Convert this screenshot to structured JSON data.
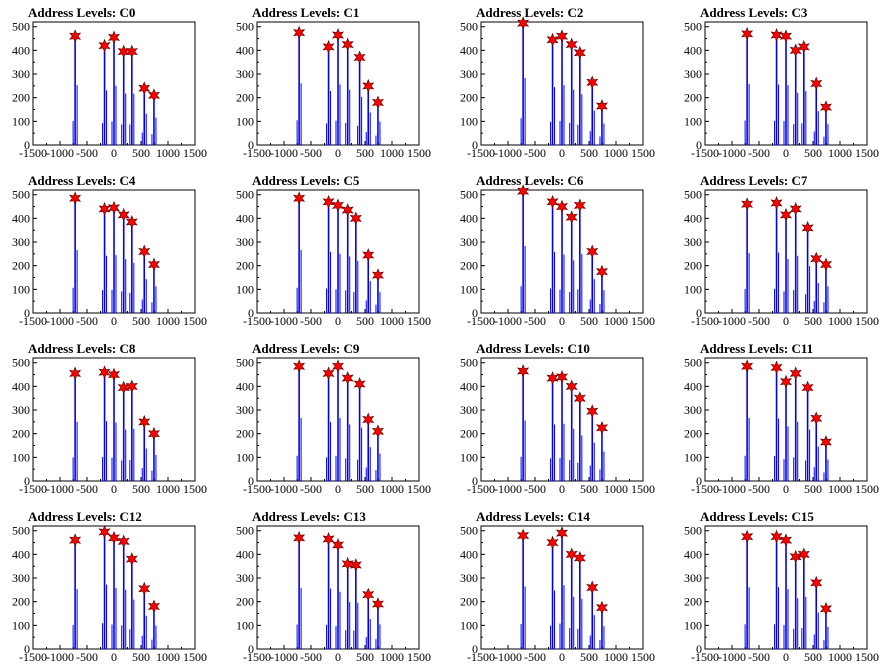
{
  "chart_data": [
    {
      "type": "bar",
      "title": "Address Levels: C0",
      "xlim": [
        -1500,
        1500
      ],
      "ylim": [
        0,
        520
      ],
      "x_ticks": [
        -1500,
        -1000,
        -500,
        0,
        500,
        1000,
        1500
      ],
      "y_ticks": [
        0,
        100,
        200,
        300,
        400,
        500
      ],
      "peaks": [
        {
          "x": -720,
          "y": 460
        },
        {
          "x": -175,
          "y": 420
        },
        {
          "x": 0,
          "y": 455
        },
        {
          "x": 180,
          "y": 395
        },
        {
          "x": 330,
          "y": 395
        },
        {
          "x": 560,
          "y": 240
        },
        {
          "x": 740,
          "y": 210
        }
      ]
    },
    {
      "type": "bar",
      "title": "Address Levels: C1",
      "xlim": [
        -1500,
        1500
      ],
      "ylim": [
        0,
        520
      ],
      "x_ticks": [
        -1500,
        -1000,
        -500,
        0,
        500,
        1000,
        1500
      ],
      "y_ticks": [
        0,
        100,
        200,
        300,
        400,
        500
      ],
      "peaks": [
        {
          "x": -720,
          "y": 475
        },
        {
          "x": -175,
          "y": 415
        },
        {
          "x": 0,
          "y": 465
        },
        {
          "x": 180,
          "y": 425
        },
        {
          "x": 400,
          "y": 370
        },
        {
          "x": 560,
          "y": 250
        },
        {
          "x": 740,
          "y": 180
        }
      ]
    },
    {
      "type": "bar",
      "title": "Address Levels: C2",
      "xlim": [
        -1500,
        1500
      ],
      "ylim": [
        0,
        520
      ],
      "x_ticks": [
        -1500,
        -1000,
        -500,
        0,
        500,
        1000,
        1500
      ],
      "y_ticks": [
        0,
        100,
        200,
        300,
        400,
        500
      ],
      "peaks": [
        {
          "x": -720,
          "y": 515
        },
        {
          "x": -175,
          "y": 445
        },
        {
          "x": 0,
          "y": 460
        },
        {
          "x": 180,
          "y": 425
        },
        {
          "x": 330,
          "y": 390
        },
        {
          "x": 560,
          "y": 265
        },
        {
          "x": 740,
          "y": 165
        }
      ]
    },
    {
      "type": "bar",
      "title": "Address Levels: C3",
      "xlim": [
        -1500,
        1500
      ],
      "ylim": [
        0,
        520
      ],
      "x_ticks": [
        -1500,
        -1000,
        -500,
        0,
        500,
        1000,
        1500
      ],
      "y_ticks": [
        0,
        100,
        200,
        300,
        400,
        500
      ],
      "peaks": [
        {
          "x": -720,
          "y": 470
        },
        {
          "x": -175,
          "y": 465
        },
        {
          "x": 0,
          "y": 460
        },
        {
          "x": 180,
          "y": 400
        },
        {
          "x": 330,
          "y": 415
        },
        {
          "x": 560,
          "y": 260
        },
        {
          "x": 740,
          "y": 160
        }
      ]
    },
    {
      "type": "bar",
      "title": "Address Levels: C4",
      "xlim": [
        -1500,
        1500
      ],
      "ylim": [
        0,
        520
      ],
      "x_ticks": [
        -1500,
        -1000,
        -500,
        0,
        500,
        1000,
        1500
      ],
      "y_ticks": [
        0,
        100,
        200,
        300,
        400,
        500
      ],
      "peaks": [
        {
          "x": -720,
          "y": 485
        },
        {
          "x": -175,
          "y": 440
        },
        {
          "x": 0,
          "y": 445
        },
        {
          "x": 180,
          "y": 415
        },
        {
          "x": 330,
          "y": 385
        },
        {
          "x": 560,
          "y": 260
        },
        {
          "x": 740,
          "y": 205
        }
      ]
    },
    {
      "type": "bar",
      "title": "Address Levels: C5",
      "xlim": [
        -1500,
        1500
      ],
      "ylim": [
        0,
        520
      ],
      "x_ticks": [
        -1500,
        -1000,
        -500,
        0,
        500,
        1000,
        1500
      ],
      "y_ticks": [
        0,
        100,
        200,
        300,
        400,
        500
      ],
      "peaks": [
        {
          "x": -720,
          "y": 485
        },
        {
          "x": -175,
          "y": 470
        },
        {
          "x": 0,
          "y": 455
        },
        {
          "x": 180,
          "y": 435
        },
        {
          "x": 330,
          "y": 400
        },
        {
          "x": 560,
          "y": 245
        },
        {
          "x": 740,
          "y": 160
        }
      ]
    },
    {
      "type": "bar",
      "title": "Address Levels: C6",
      "xlim": [
        -1500,
        1500
      ],
      "ylim": [
        0,
        520
      ],
      "x_ticks": [
        -1500,
        -1000,
        -500,
        0,
        500,
        1000,
        1500
      ],
      "y_ticks": [
        0,
        100,
        200,
        300,
        400,
        500
      ],
      "peaks": [
        {
          "x": -720,
          "y": 515
        },
        {
          "x": -175,
          "y": 470
        },
        {
          "x": 0,
          "y": 450
        },
        {
          "x": 180,
          "y": 405
        },
        {
          "x": 330,
          "y": 455
        },
        {
          "x": 560,
          "y": 260
        },
        {
          "x": 740,
          "y": 175
        }
      ]
    },
    {
      "type": "bar",
      "title": "Address Levels: C7",
      "xlim": [
        -1500,
        1500
      ],
      "ylim": [
        0,
        520
      ],
      "x_ticks": [
        -1500,
        -1000,
        -500,
        0,
        500,
        1000,
        1500
      ],
      "y_ticks": [
        0,
        100,
        200,
        300,
        400,
        500
      ],
      "peaks": [
        {
          "x": -720,
          "y": 460
        },
        {
          "x": -175,
          "y": 465
        },
        {
          "x": 0,
          "y": 415
        },
        {
          "x": 180,
          "y": 440
        },
        {
          "x": 400,
          "y": 360
        },
        {
          "x": 560,
          "y": 230
        },
        {
          "x": 740,
          "y": 205
        }
      ]
    },
    {
      "type": "bar",
      "title": "Address Levels: C8",
      "xlim": [
        -1500,
        1500
      ],
      "ylim": [
        0,
        520
      ],
      "x_ticks": [
        -1500,
        -1000,
        -500,
        0,
        500,
        1000,
        1500
      ],
      "y_ticks": [
        0,
        100,
        200,
        300,
        400,
        500
      ],
      "peaks": [
        {
          "x": -720,
          "y": 455
        },
        {
          "x": -175,
          "y": 460
        },
        {
          "x": 0,
          "y": 450
        },
        {
          "x": 180,
          "y": 395
        },
        {
          "x": 330,
          "y": 400
        },
        {
          "x": 560,
          "y": 250
        },
        {
          "x": 740,
          "y": 200
        }
      ]
    },
    {
      "type": "bar",
      "title": "Address Levels: C9",
      "xlim": [
        -1500,
        1500
      ],
      "ylim": [
        0,
        520
      ],
      "x_ticks": [
        -1500,
        -1000,
        -500,
        0,
        500,
        1000,
        1500
      ],
      "y_ticks": [
        0,
        100,
        200,
        300,
        400,
        500
      ],
      "peaks": [
        {
          "x": -720,
          "y": 485
        },
        {
          "x": -175,
          "y": 455
        },
        {
          "x": 0,
          "y": 485
        },
        {
          "x": 180,
          "y": 435
        },
        {
          "x": 400,
          "y": 410
        },
        {
          "x": 560,
          "y": 260
        },
        {
          "x": 740,
          "y": 210
        }
      ]
    },
    {
      "type": "bar",
      "title": "Address Levels: C10",
      "xlim": [
        -1500,
        1500
      ],
      "ylim": [
        0,
        520
      ],
      "x_ticks": [
        -1500,
        -1000,
        -500,
        0,
        500,
        1000,
        1500
      ],
      "y_ticks": [
        0,
        100,
        200,
        300,
        400,
        500
      ],
      "peaks": [
        {
          "x": -720,
          "y": 465
        },
        {
          "x": -175,
          "y": 435
        },
        {
          "x": 0,
          "y": 440
        },
        {
          "x": 180,
          "y": 400
        },
        {
          "x": 330,
          "y": 350
        },
        {
          "x": 560,
          "y": 295
        },
        {
          "x": 740,
          "y": 225
        }
      ]
    },
    {
      "type": "bar",
      "title": "Address Levels: C11",
      "xlim": [
        -1500,
        1500
      ],
      "ylim": [
        0,
        520
      ],
      "x_ticks": [
        -1500,
        -1000,
        -500,
        0,
        500,
        1000,
        1500
      ],
      "y_ticks": [
        0,
        100,
        200,
        300,
        400,
        500
      ],
      "peaks": [
        {
          "x": -720,
          "y": 485
        },
        {
          "x": -175,
          "y": 480
        },
        {
          "x": 0,
          "y": 420
        },
        {
          "x": 180,
          "y": 455
        },
        {
          "x": 400,
          "y": 395
        },
        {
          "x": 560,
          "y": 265
        },
        {
          "x": 740,
          "y": 165
        }
      ]
    },
    {
      "type": "bar",
      "title": "Address Levels: C12",
      "xlim": [
        -1500,
        1500
      ],
      "ylim": [
        0,
        520
      ],
      "x_ticks": [
        -1500,
        -1000,
        -500,
        0,
        500,
        1000,
        1500
      ],
      "y_ticks": [
        0,
        100,
        200,
        300,
        400,
        500
      ],
      "peaks": [
        {
          "x": -720,
          "y": 460
        },
        {
          "x": -175,
          "y": 495
        },
        {
          "x": 0,
          "y": 470
        },
        {
          "x": 180,
          "y": 455
        },
        {
          "x": 330,
          "y": 380
        },
        {
          "x": 560,
          "y": 255
        },
        {
          "x": 740,
          "y": 180
        }
      ]
    },
    {
      "type": "bar",
      "title": "Address Levels: C13",
      "xlim": [
        -1500,
        1500
      ],
      "ylim": [
        0,
        520
      ],
      "x_ticks": [
        -1500,
        -1000,
        -500,
        0,
        500,
        1000,
        1500
      ],
      "y_ticks": [
        0,
        100,
        200,
        300,
        400,
        500
      ],
      "peaks": [
        {
          "x": -720,
          "y": 470
        },
        {
          "x": -175,
          "y": 465
        },
        {
          "x": 0,
          "y": 440
        },
        {
          "x": 180,
          "y": 360
        },
        {
          "x": 330,
          "y": 355
        },
        {
          "x": 560,
          "y": 230
        },
        {
          "x": 740,
          "y": 190
        }
      ]
    },
    {
      "type": "bar",
      "title": "Address Levels: C14",
      "xlim": [
        -1500,
        1500
      ],
      "ylim": [
        0,
        520
      ],
      "x_ticks": [
        -1500,
        -1000,
        -500,
        0,
        500,
        1000,
        1500
      ],
      "y_ticks": [
        0,
        100,
        200,
        300,
        400,
        500
      ],
      "peaks": [
        {
          "x": -720,
          "y": 480
        },
        {
          "x": -175,
          "y": 450
        },
        {
          "x": 0,
          "y": 490
        },
        {
          "x": 180,
          "y": 400
        },
        {
          "x": 330,
          "y": 385
        },
        {
          "x": 560,
          "y": 260
        },
        {
          "x": 740,
          "y": 175
        }
      ]
    },
    {
      "type": "bar",
      "title": "Address Levels: C15",
      "xlim": [
        -1500,
        1500
      ],
      "ylim": [
        0,
        520
      ],
      "x_ticks": [
        -1500,
        -1000,
        -500,
        0,
        500,
        1000,
        1500
      ],
      "y_ticks": [
        0,
        100,
        200,
        300,
        400,
        500
      ],
      "peaks": [
        {
          "x": -720,
          "y": 475
        },
        {
          "x": -175,
          "y": 475
        },
        {
          "x": 0,
          "y": 460
        },
        {
          "x": 180,
          "y": 390
        },
        {
          "x": 330,
          "y": 400
        },
        {
          "x": 560,
          "y": 280
        },
        {
          "x": 740,
          "y": 170
        }
      ]
    }
  ],
  "colors": {
    "bars": "#0000ee",
    "marker_fill": "#ff0000",
    "marker_stroke": "#660000",
    "axis": "#000000"
  }
}
